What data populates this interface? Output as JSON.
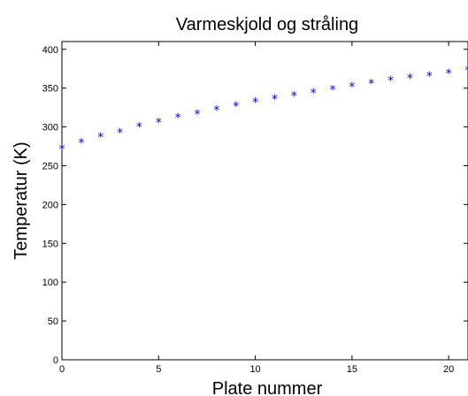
{
  "chart_data": {
    "type": "scatter",
    "title": "Varmeskjold og stråling",
    "xlabel": "Plate nummer",
    "ylabel": "Temperatur (K)",
    "xlim": [
      0,
      21
    ],
    "ylim": [
      0,
      410
    ],
    "xticks": [
      "0",
      "5",
      "10",
      "15",
      "20"
    ],
    "yticks": [
      "0",
      "50",
      "100",
      "150",
      "200",
      "250",
      "300",
      "350",
      "400"
    ],
    "grid": false,
    "marker": "*",
    "marker_color": "#0000ff",
    "series": [
      {
        "x": [
          0,
          1,
          2,
          3,
          4,
          5,
          6,
          7,
          8,
          9,
          10,
          11,
          12,
          13,
          14,
          15,
          16,
          17,
          18,
          19,
          20,
          21
        ],
        "values": [
          273,
          281,
          288,
          294,
          301,
          307,
          313,
          318,
          323,
          328,
          333,
          337,
          341,
          345,
          349,
          353,
          357,
          361,
          364,
          367,
          370,
          374
        ]
      }
    ]
  }
}
